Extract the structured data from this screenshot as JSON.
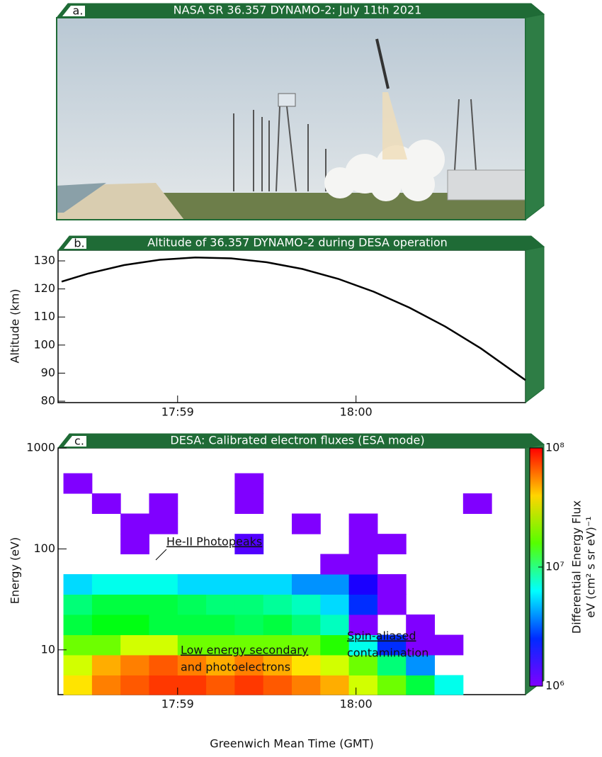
{
  "chart_data": [
    {
      "type": "photo",
      "panel": "a.",
      "title": "NASA SR 36.357 DYNAMO-2: July 11th 2021"
    },
    {
      "type": "line",
      "panel": "b.",
      "title": "Altitude of 36.357 DYNAMO-2 during DESA operation",
      "ylabel": "Altitude (km)",
      "color": "#000000",
      "x": [
        1078.35,
        1078.5,
        1078.7,
        1078.9,
        1079.1,
        1079.3,
        1079.5,
        1079.7,
        1079.9,
        1080.1,
        1080.3,
        1080.5,
        1080.7,
        1080.95
      ],
      "values": [
        122.6,
        125.5,
        128.5,
        130.4,
        131.2,
        130.9,
        129.5,
        127.1,
        123.6,
        119.0,
        113.3,
        106.6,
        98.8,
        87.5
      ],
      "xlim": [
        1078.33,
        1080.95
      ],
      "xticks": [
        {
          "value": 1079,
          "label": "17:59"
        },
        {
          "value": 1080,
          "label": "18:00"
        }
      ],
      "ylim": [
        79.5,
        133.8
      ],
      "yticks": [
        80,
        90,
        100,
        110,
        120,
        130
      ]
    },
    {
      "type": "heatmap",
      "panel": "c.",
      "title": "DESA: Calibrated electron fluxes (ESA mode)",
      "xlabel": "Greenwich Mean Time (GMT)",
      "ylabel": "Energy (eV)",
      "log_y": true,
      "xlim": [
        1078.33,
        1080.95
      ],
      "xticks": [
        {
          "value": 1079,
          "label": "17:59"
        },
        {
          "value": 1080,
          "label": "18:00"
        }
      ],
      "ylim": [
        3.6,
        1000
      ],
      "yticks": [
        10,
        100,
        1000
      ],
      "x_edges": [
        1078.36,
        1078.52,
        1078.68,
        1078.84,
        1079.0,
        1079.16,
        1079.32,
        1079.48,
        1079.64,
        1079.8,
        1079.96,
        1080.12,
        1080.28,
        1080.44,
        1080.6,
        1080.76
      ],
      "y_edges": [
        3.55,
        5.62,
        8.91,
        14.1,
        22.4,
        35.5,
        56.2,
        89.1,
        141,
        224,
        355,
        562
      ],
      "z": [
        [
          40000000.0,
          60000000.0,
          70000000.0,
          80000000.0,
          80000000.0,
          70000000.0,
          80000000.0,
          70000000.0,
          60000000.0,
          50000000.0,
          30000000.0,
          20000000.0,
          10000000.0,
          5000000.0,
          null
        ],
        [
          30000000.0,
          50000000.0,
          60000000.0,
          70000000.0,
          60000000.0,
          50000000.0,
          60000000.0,
          50000000.0,
          40000000.0,
          30000000.0,
          20000000.0,
          8000000.0,
          3000000.0,
          null,
          null
        ],
        [
          20000000.0,
          20000000.0,
          30000000.0,
          30000000.0,
          20000000.0,
          20000000.0,
          20000000.0,
          20000000.0,
          20000000.0,
          15000000.0,
          5000000.0,
          2000000.0,
          1000000.0,
          1000000.0,
          null
        ],
        [
          10000000.0,
          12000000.0,
          12000000.0,
          10000000.0,
          10000000.0,
          10000000.0,
          9000000.0,
          10000000.0,
          8000000.0,
          6000000.0,
          1000000.0,
          null,
          1000000.0,
          null,
          null
        ],
        [
          8000000.0,
          10000000.0,
          10000000.0,
          10000000.0,
          9000000.0,
          8000000.0,
          8000000.0,
          7000000.0,
          6000000.0,
          4000000.0,
          2000000.0,
          1000000.0,
          null,
          null,
          null
        ],
        [
          4000000.0,
          5000000.0,
          5000000.0,
          5000000.0,
          4000000.0,
          4000000.0,
          4000000.0,
          4000000.0,
          3000000.0,
          3000000.0,
          1500000.0,
          1000000.0,
          null,
          null,
          null
        ],
        [
          null,
          null,
          null,
          null,
          null,
          null,
          null,
          null,
          null,
          1000000.0,
          1000000.0,
          null,
          null,
          null,
          null
        ],
        [
          null,
          null,
          1000000.0,
          null,
          null,
          null,
          1200000.0,
          null,
          null,
          null,
          1000000.0,
          1000000.0,
          null,
          null,
          null
        ],
        [
          null,
          null,
          1000000.0,
          1000000.0,
          null,
          null,
          null,
          null,
          1000000.0,
          null,
          1000000.0,
          null,
          null,
          null,
          null
        ],
        [
          null,
          1000000.0,
          null,
          1000000.0,
          null,
          null,
          1000000.0,
          null,
          null,
          null,
          null,
          null,
          null,
          null,
          1000000.0
        ],
        [
          1000000.0,
          null,
          null,
          null,
          null,
          null,
          1000000.0,
          null,
          null,
          null,
          null,
          null,
          null,
          null,
          null
        ]
      ],
      "zlim": [
        1000000.0,
        100000000.0
      ],
      "zticks": [
        {
          "value": 1000000.0,
          "label": "10⁶"
        },
        {
          "value": 10000000.0,
          "label": "10⁷"
        },
        {
          "value": 100000000.0,
          "label": "10⁸"
        }
      ],
      "zlabel": [
        "Differential Energy Flux",
        "eV (cm² s sr eV)⁻¹"
      ],
      "annotations": [
        "He-II Photopeaks",
        "Low energy secondary",
        "and photoelectrons",
        "Spin-aliased",
        "contamination"
      ]
    }
  ]
}
